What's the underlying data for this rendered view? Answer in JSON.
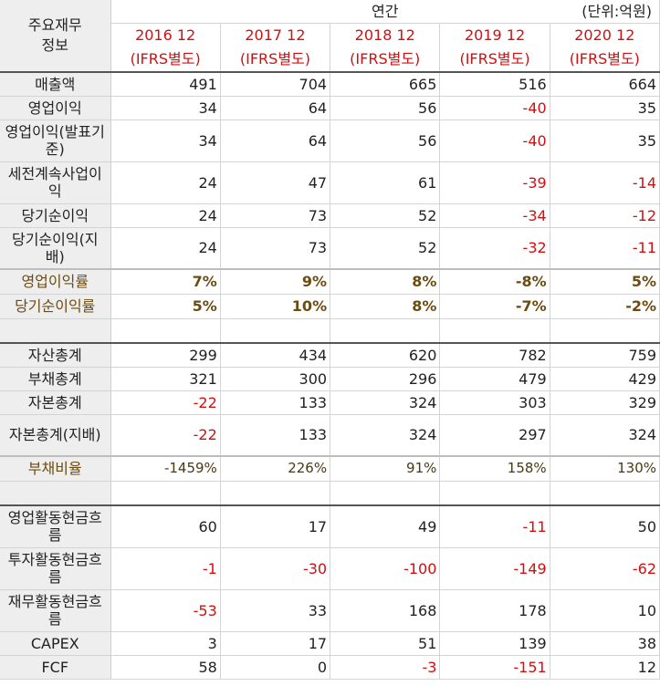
{
  "header": {
    "corner_label": "주요재무\n정보",
    "period_label": "연간",
    "unit_label": "(단위:억원)",
    "years": [
      {
        "year": "2016 12",
        "basis": "(IFRS별도)"
      },
      {
        "year": "2017 12",
        "basis": "(IFRS별도)"
      },
      {
        "year": "2018 12",
        "basis": "(IFRS별도)"
      },
      {
        "year": "2019 12",
        "basis": "(IFRS별도)"
      },
      {
        "year": "2020 12",
        "basis": "(IFRS별도)"
      }
    ]
  },
  "sections": {
    "income": [
      {
        "label": "매출액",
        "values": [
          "491",
          "704",
          "665",
          "516",
          "664"
        ]
      },
      {
        "label": "영업이익",
        "values": [
          "34",
          "64",
          "56",
          "-40",
          "35"
        ]
      },
      {
        "label": "영업이익(발표기준)",
        "values": [
          "34",
          "64",
          "56",
          "-40",
          "35"
        ]
      },
      {
        "label": "세전계속사업이익",
        "values": [
          "24",
          "47",
          "61",
          "-39",
          "-14"
        ]
      },
      {
        "label": "당기순이익",
        "values": [
          "24",
          "73",
          "52",
          "-34",
          "-12"
        ]
      },
      {
        "label": "당기순이익(지배)",
        "values": [
          "24",
          "73",
          "52",
          "-32",
          "-11"
        ]
      }
    ],
    "income_ratios": [
      {
        "label": "영업이익률",
        "values": [
          "7%",
          "9%",
          "8%",
          "-8%",
          "5%"
        ]
      },
      {
        "label": "당기순이익률",
        "values": [
          "5%",
          "10%",
          "8%",
          "-7%",
          "-2%"
        ]
      }
    ],
    "balance": [
      {
        "label": "자산총계",
        "values": [
          "299",
          "434",
          "620",
          "782",
          "759"
        ]
      },
      {
        "label": "부채총계",
        "values": [
          "321",
          "300",
          "296",
          "479",
          "429"
        ]
      },
      {
        "label": "자본총계",
        "values": [
          "-22",
          "133",
          "324",
          "303",
          "329"
        ]
      },
      {
        "label": "자본총계(지배)",
        "values": [
          "-22",
          "133",
          "324",
          "297",
          "324"
        ]
      }
    ],
    "balance_ratio": {
      "label": "부채비율",
      "values": [
        "-1459%",
        "226%",
        "91%",
        "158%",
        "130%"
      ]
    },
    "cashflow": [
      {
        "label": "영업활동현금흐름",
        "values": [
          "60",
          "17",
          "49",
          "-11",
          "50"
        ]
      },
      {
        "label": "투자활동현금흐름",
        "values": [
          "-1",
          "-30",
          "-100",
          "-149",
          "-62"
        ]
      },
      {
        "label": "재무활동현금흐름",
        "values": [
          "-53",
          "33",
          "168",
          "178",
          "10"
        ]
      },
      {
        "label": "CAPEX",
        "values": [
          "3",
          "17",
          "51",
          "139",
          "38"
        ]
      },
      {
        "label": "FCF",
        "values": [
          "58",
          "0",
          "-3",
          "-151",
          "12"
        ]
      }
    ]
  },
  "colors": {
    "negative": "#d01010",
    "ratio_text": "#6b4c12",
    "label_bg": "#eeeeee"
  }
}
